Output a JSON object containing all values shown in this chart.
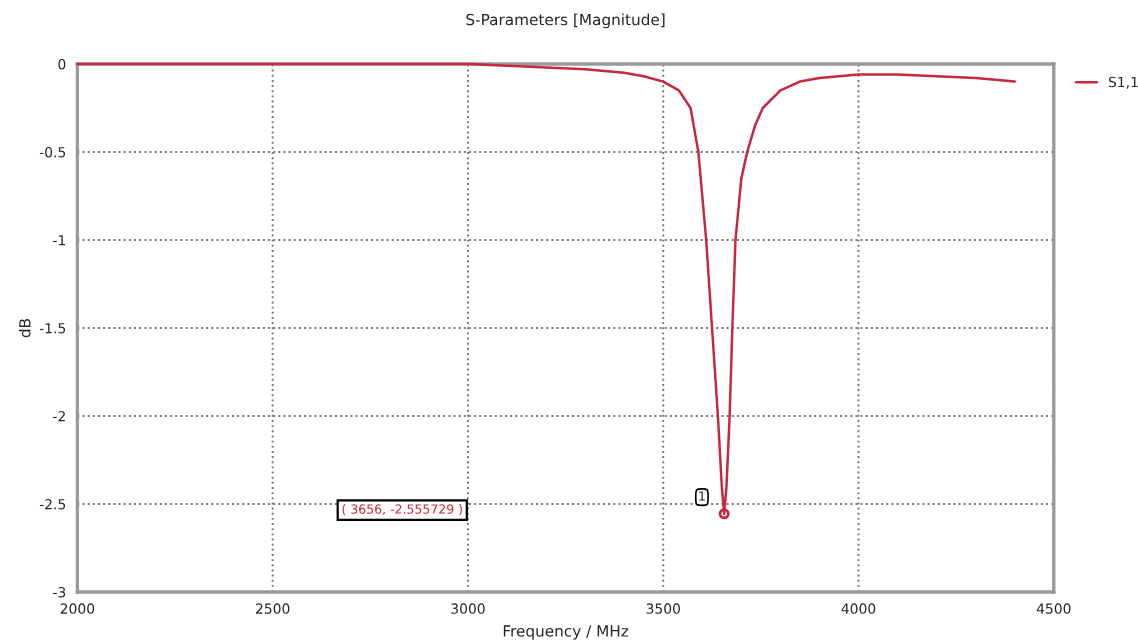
{
  "chart_data": {
    "type": "line",
    "title": "S-Parameters [Magnitude]",
    "xlabel": "Frequency / MHz",
    "ylabel": "dB",
    "x": [
      2000,
      2500,
      2900,
      3000,
      3100,
      3200,
      3300,
      3400,
      3450,
      3500,
      3540,
      3570,
      3590,
      3610,
      3625,
      3640,
      3650,
      3656,
      3662,
      3670,
      3677,
      3685,
      3700,
      3715,
      3735,
      3755,
      3800,
      3850,
      3900,
      4000,
      4100,
      4200,
      4300,
      4400
    ],
    "series": [
      {
        "name": "S1,1",
        "color": "#c8283c",
        "values": [
          0,
          0,
          0,
          0,
          -0.01,
          -0.02,
          -0.03,
          -0.05,
          -0.07,
          -0.1,
          -0.15,
          -0.25,
          -0.5,
          -1,
          -1.5,
          -2,
          -2.4,
          -2.555729,
          -2.4,
          -2,
          -1.5,
          -1,
          -0.65,
          -0.5,
          -0.35,
          -0.25,
          -0.15,
          -0.1,
          -0.08,
          -0.06,
          -0.06,
          -0.07,
          -0.08,
          -0.1
        ]
      }
    ],
    "annotations": [
      "( 3656, -2.555729 )",
      {
        "text": "1",
        "x": 3656,
        "y": -2.555729
      }
    ],
    "xlim": [
      2000,
      4500
    ],
    "xticks": [
      2000,
      2500,
      3000,
      3500,
      4000,
      4500
    ],
    "ylim": [
      -3,
      0
    ],
    "yticks": [
      0,
      -0.5,
      -1,
      -1.5,
      -2,
      -2.5,
      -3
    ],
    "grid": true,
    "legend": "top right",
    "line_style": "solid",
    "marker": "none"
  }
}
